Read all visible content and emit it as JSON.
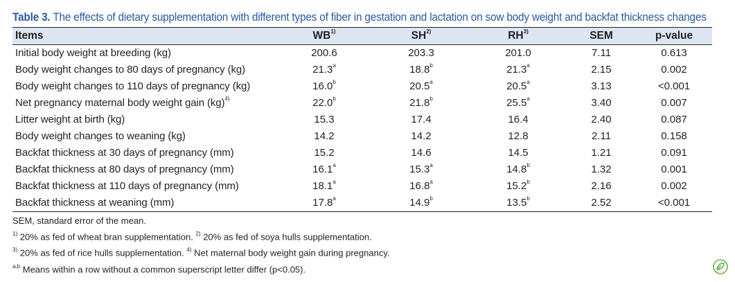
{
  "caption": {
    "label": "Table 3.",
    "text": "The effects of dietary supplementation with different types of fiber in gestation and lactation on sow body weight and backfat thickness changes"
  },
  "table": {
    "headers": [
      {
        "text": "Items",
        "sup": ""
      },
      {
        "text": "WB",
        "sup": "1)"
      },
      {
        "text": "SH",
        "sup": "2)"
      },
      {
        "text": "RH",
        "sup": "3)"
      },
      {
        "text": "SEM",
        "sup": ""
      },
      {
        "text": "p-value",
        "sup": ""
      }
    ],
    "rows": [
      {
        "item": "Initial body weight at breeding (kg)",
        "item_sup": "",
        "wb": "200.6",
        "wb_sup": "",
        "sh": "203.3",
        "sh_sup": "",
        "rh": "201.0",
        "rh_sup": "",
        "sem": "7.11",
        "p": "0.613"
      },
      {
        "item": "Body weight changes to 80 days of pregnancy (kg)",
        "item_sup": "",
        "wb": "21.3",
        "wb_sup": "a",
        "sh": "18.8",
        "sh_sup": "b",
        "rh": "21.3",
        "rh_sup": "a",
        "sem": "2.15",
        "p": "0.002"
      },
      {
        "item": "Body weight changes to 110 days of pregnancy (kg)",
        "item_sup": "",
        "wb": "16.0",
        "wb_sup": "b",
        "sh": "20.5",
        "sh_sup": "a",
        "rh": "20.5",
        "rh_sup": "a",
        "sem": "3.13",
        "p": "<0.001"
      },
      {
        "item": "Net pregnancy maternal body weight gain (kg)",
        "item_sup": "4)",
        "wb": "22.0",
        "wb_sup": "b",
        "sh": "21.8",
        "sh_sup": "b",
        "rh": "25.5",
        "rh_sup": "a",
        "sem": "3.40",
        "p": "0.007"
      },
      {
        "item": "Litter weight at birth (kg)",
        "item_sup": "",
        "wb": "15.3",
        "wb_sup": "",
        "sh": "17.4",
        "sh_sup": "",
        "rh": "16.4",
        "rh_sup": "",
        "sem": "2.40",
        "p": "0.087"
      },
      {
        "item": "Body weight changes to weaning (kg)",
        "item_sup": "",
        "wb": "14.2",
        "wb_sup": "",
        "sh": "14.2",
        "sh_sup": "",
        "rh": "12.8",
        "rh_sup": "",
        "sem": "2.11",
        "p": "0.158"
      },
      {
        "item": "Backfat thickness at 30 days of pregnancy (mm)",
        "item_sup": "",
        "wb": "15.2",
        "wb_sup": "",
        "sh": "14.6",
        "sh_sup": "",
        "rh": "14.5",
        "rh_sup": "",
        "sem": "1.21",
        "p": "0.091"
      },
      {
        "item": "Backfat thickness at 80 days of pregnancy (mm)",
        "item_sup": "",
        "wb": "16.1",
        "wb_sup": "a",
        "sh": "15.3",
        "sh_sup": "a",
        "rh": "14.8",
        "rh_sup": "b",
        "sem": "1.32",
        "p": "0.001"
      },
      {
        "item": "Backfat thickness at 110 days of pregnancy (mm)",
        "item_sup": "",
        "wb": "18.1",
        "wb_sup": "a",
        "sh": "16.8",
        "sh_sup": "a",
        "rh": "15.2",
        "rh_sup": "b",
        "sem": "2.16",
        "p": "0.002"
      },
      {
        "item": "Backfat thickness at weaning (mm)",
        "item_sup": "",
        "wb": "17.8",
        "wb_sup": "a",
        "sh": "14.9",
        "sh_sup": "b",
        "rh": "13.5",
        "rh_sup": "b",
        "sem": "2.52",
        "p": "<0.001"
      }
    ]
  },
  "notes": {
    "sem": "SEM, standard error of the mean.",
    "n1_sup": "1)",
    "n1": "20% as fed of wheat bran supplementation.",
    "n2_sup": "2)",
    "n2": "20% as fed of soya hulls supplementation.",
    "n3_sup": "3)",
    "n3": "20% as fed of rice hulls supplementation.",
    "n4_sup": "4)",
    "n4": "Net maternal body weight gain during pregnancy.",
    "n5_sup": "a,b",
    "n5": "Means within a row without a common superscript letter differ (p<0.05)."
  },
  "colors": {
    "caption_blue": "#2a5aa0",
    "header_bg": "#dce6f2",
    "logo_green": "#6ab04c"
  },
  "icons": {
    "corner_logo": "leaf-logo-icon"
  }
}
